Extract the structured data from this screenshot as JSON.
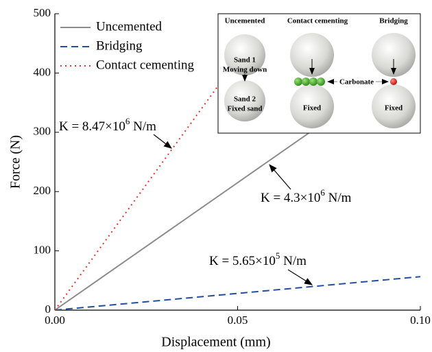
{
  "chart_data": {
    "type": "line",
    "x_label": "Displacement (mm)",
    "y_label": "Force (N)",
    "x": [
      0,
      0.1
    ],
    "series": [
      {
        "name": "Uncemented",
        "color": "#8c8c8c",
        "dash": "solid",
        "values": [
          0,
          430
        ]
      },
      {
        "name": "Bridging",
        "color": "#1f4e9c",
        "dash": "dashed",
        "values": [
          0,
          56.5
        ]
      },
      {
        "name": "Contact cementing",
        "color": "#e8302a",
        "dash": "dotted",
        "values": [
          0,
          847
        ]
      }
    ],
    "xlim": [
      0,
      0.1
    ],
    "ylim": [
      0,
      500
    ],
    "xticks": [
      {
        "value": 0,
        "label": "0.00"
      },
      0.05,
      {
        "value": 0.1,
        "label": "0.10"
      }
    ],
    "yticks": [
      0,
      100,
      200,
      300,
      400,
      500
    ],
    "legend": "top-left",
    "annotations": [
      {
        "text": "K = 8.47×10",
        "exp": "6",
        "unit": " N/m"
      },
      {
        "text": "K = 4.3×10",
        "exp": "6",
        "unit": " N/m"
      },
      {
        "text": "K = 5.65×10",
        "exp": "5",
        "unit": " N/m"
      }
    ]
  },
  "inset": {
    "headers": [
      "Uncemented",
      "Contact cementing",
      "Bridging"
    ],
    "sand1": "Sand 1",
    "moving": "Moving down",
    "sand2": "Sand 2",
    "fixed_sand": "Fixed sand",
    "fixed": [
      "Fixed",
      "Fixed"
    ],
    "carbonate": "Carbonate"
  }
}
